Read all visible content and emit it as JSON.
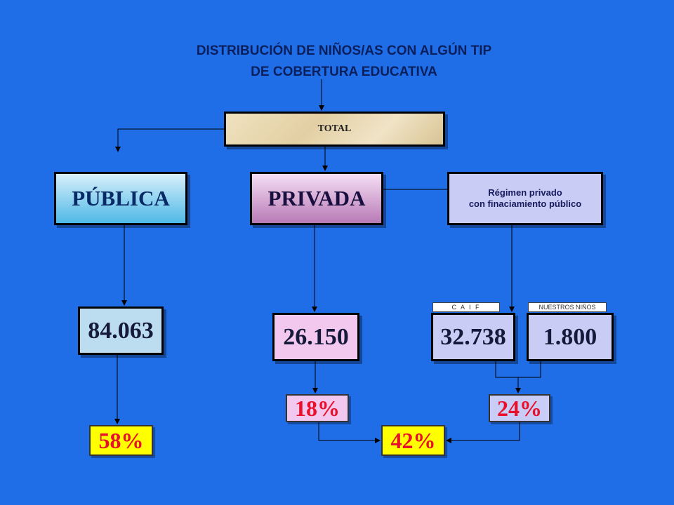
{
  "title": {
    "line1": "DISTRIBUCIÓN  DE NIÑOS/AS CON ALGÚN TIP",
    "line2": "DE COBERTURA EDUCATIVA"
  },
  "nodes": {
    "total": "TOTAL",
    "publica": "PÚBLICA",
    "privada": "PRIVADA",
    "regimen_line1": "Régimen privado",
    "regimen_line2": "con finaciamiento público"
  },
  "values": {
    "publica": "84.063",
    "privada": "26.150",
    "caif": "32.738",
    "nuestros_ninos": "1.800"
  },
  "tags": {
    "caif": "C A I F",
    "nuestros_ninos": "NUESTROS NIÑOS"
  },
  "percentages": {
    "publica": "58%",
    "privada": "18%",
    "regimen": "24%",
    "combined": "42%"
  },
  "colors": {
    "background": "#1f6ee8",
    "percent_text": "#e8102a",
    "highlight": "#ffff00"
  }
}
